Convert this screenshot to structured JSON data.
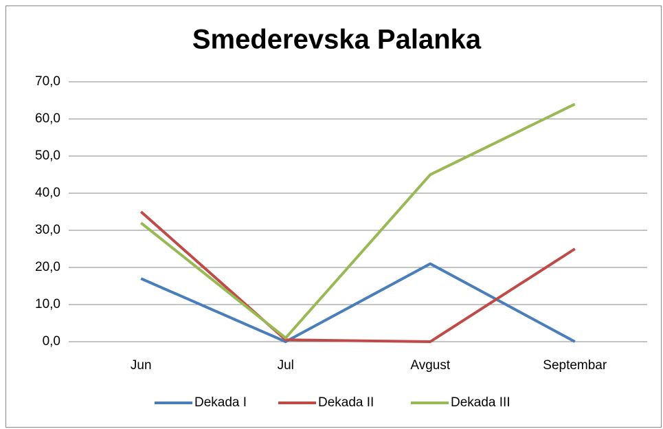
{
  "chart_data": {
    "type": "line",
    "title": "Smederevska Palanka",
    "categories": [
      "Jun",
      "Jul",
      "Avgust",
      "Septembar"
    ],
    "series": [
      {
        "name": "Dekada I",
        "color": "#4a7ebb",
        "values": [
          17,
          0,
          21,
          0
        ]
      },
      {
        "name": "Dekada II",
        "color": "#be4b48",
        "values": [
          35,
          0.5,
          0,
          25
        ]
      },
      {
        "name": "Dekada III",
        "color": "#98b954",
        "values": [
          32,
          1,
          45,
          64
        ]
      }
    ],
    "ylim": [
      0,
      70
    ],
    "yticks": [
      {
        "value": 0,
        "label": "0,0"
      },
      {
        "value": 10,
        "label": "10,0"
      },
      {
        "value": 20,
        "label": "20,0"
      },
      {
        "value": 30,
        "label": "30,0"
      },
      {
        "value": 40,
        "label": "40,0"
      },
      {
        "value": 50,
        "label": "50,0"
      },
      {
        "value": 60,
        "label": "60,0"
      },
      {
        "value": 70,
        "label": "70,0"
      }
    ],
    "grid": true,
    "legend": "bottom"
  }
}
